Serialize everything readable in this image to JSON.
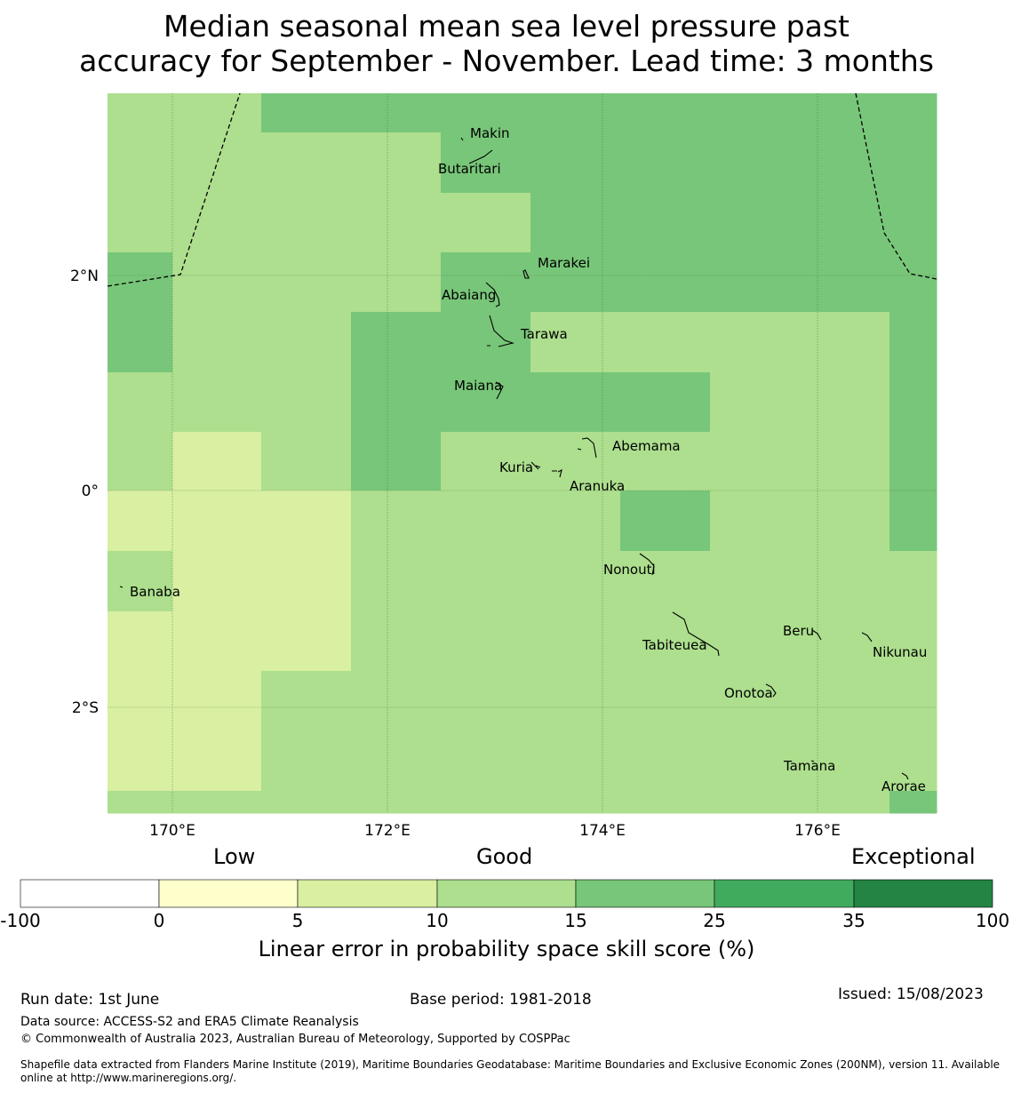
{
  "title": {
    "line1": "Median seasonal mean sea level pressure past",
    "line2": "accuracy for September - November. Lead time: 3 months"
  },
  "map": {
    "lon_ticks": [
      "170°E",
      "172°E",
      "174°E",
      "176°E"
    ],
    "lat_ticks": [
      "2°N",
      "0°",
      "2°S"
    ],
    "islands": [
      "Makin",
      "Butaritari",
      "Marakei",
      "Abaiang",
      "Tarawa",
      "Maiana",
      "Abemama",
      "Kuria",
      "Aranuka",
      "Nonouti",
      "Banaba",
      "Beru",
      "Nikunau",
      "Tabiteuea",
      "Onotoa",
      "Tamana",
      "Arorae"
    ],
    "grid_colors": {
      "c5_10": "#d9efa2",
      "c10_15": "#addf8e",
      "c15_25": "#78c679"
    }
  },
  "colorbar": {
    "category_labels": [
      "Low",
      "Good",
      "Exceptional"
    ],
    "ticks": [
      "-100",
      "0",
      "5",
      "10",
      "15",
      "25",
      "35",
      "100"
    ],
    "colors": [
      "#ffffff",
      "#ffffcc",
      "#d9efa2",
      "#addf8e",
      "#78c679",
      "#41ab5d",
      "#238443"
    ],
    "label": "Linear error in probability space skill score (%)"
  },
  "footer": {
    "run_date": "Run date: 1st June",
    "base_period": "Base period: 1981-2018",
    "issued": "Issued: 15/08/2023",
    "data_source": "Data source: ACCESS-S2 and ERA5 Climate Reanalysis",
    "copyright": "© Commonwealth of Australia 2023, Australian Bureau of Meteorology, Supported by COSPPac",
    "shapefile_line1": "Shapefile data extracted from Flanders Marine Institute (2019), Maritime Boundaries Geodatabase: Maritime Boundaries and Exclusive Economic Zones (200NM), version 11. Available",
    "shapefile_line2": "online at http://www.marineregions.org/."
  }
}
